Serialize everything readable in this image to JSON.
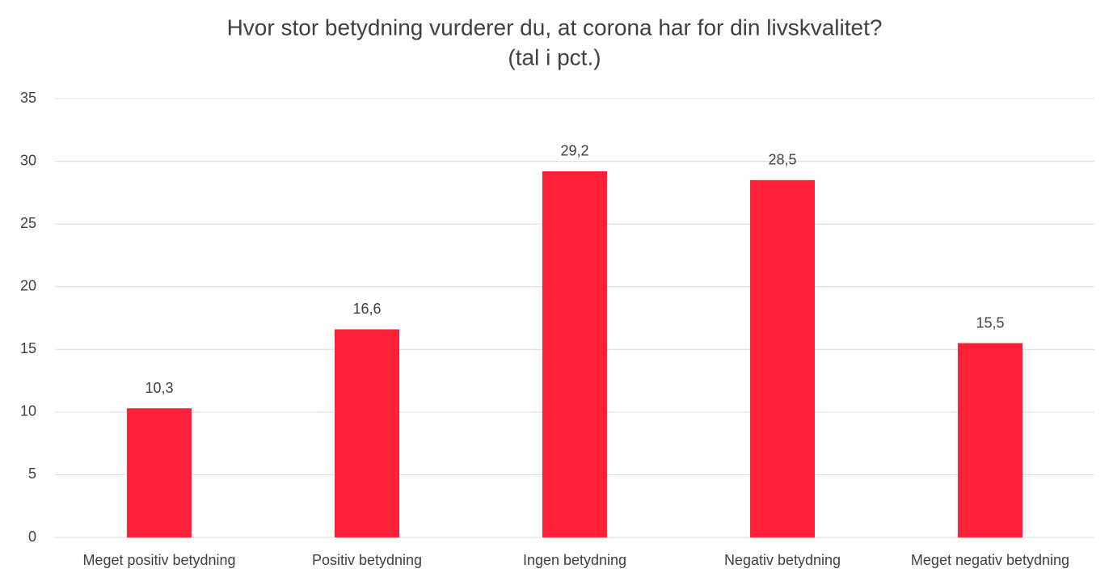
{
  "chart_data": {
    "type": "bar",
    "title": "Hvor stor betydning vurderer du, at corona har for din livskvalitet?",
    "subtitle": "(tal i pct.)",
    "categories": [
      "Meget positiv betydning",
      "Positiv betydning",
      "Ingen betydning",
      "Negativ betydning",
      "Meget negativ betydning"
    ],
    "values": [
      10.3,
      16.6,
      29.2,
      28.5,
      15.5
    ],
    "value_labels": [
      "10,3",
      "16,6",
      "29,2",
      "28,5",
      "15,5"
    ],
    "color": "#fe2036",
    "ylim": [
      0,
      35
    ],
    "yticks": [
      0,
      5,
      10,
      15,
      20,
      25,
      30,
      35
    ],
    "grid": true
  }
}
